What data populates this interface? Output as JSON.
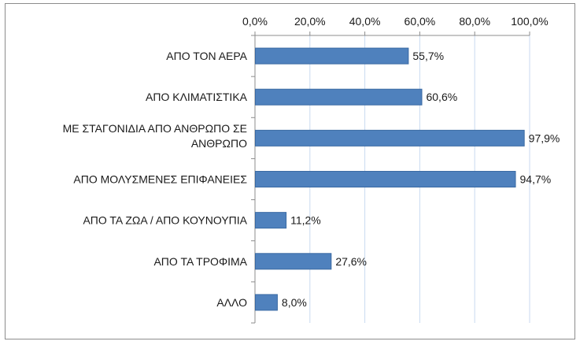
{
  "chart_data": {
    "type": "bar",
    "orientation": "horizontal",
    "categories": [
      "ΑΠΟ ΤΟΝ ΑΕΡΑ",
      "ΑΠΟ ΚΛΙΜΑΤΙΣΤΙΚΑ",
      [
        "ΜΕ ΣΤΑΓΟΝΙΔΙΑ ΑΠΟ ΑΝΘΡΩΠΟ ΣΕ",
        "ΑΝΘΡΩΠΟ"
      ],
      "ΑΠΟ ΜΟΛΥΣΜΕΝΕΣ ΕΠΙΦΑΝΕΙΕΣ",
      "ΑΠΟ ΤΑ ΖΩΑ / ΑΠΟ ΚΟΥΝΟΥΠΙΑ",
      "ΑΠΟ ΤΑ ΤΡΟΦΙΜΑ",
      "ΑΛΛΟ"
    ],
    "values": [
      55.7,
      60.6,
      97.9,
      94.7,
      11.2,
      27.6,
      8.0
    ],
    "value_labels": [
      "55,7%",
      "60,6%",
      "97,9%",
      "94,7%",
      "11,2%",
      "27,6%",
      "8,0%"
    ],
    "xlim": [
      0,
      100
    ],
    "ticks": [
      0,
      20,
      40,
      60,
      80,
      100
    ],
    "tick_labels": [
      "0,0%",
      "20,0%",
      "40,0%",
      "60,0%",
      "80,0%",
      "100,0%"
    ],
    "x_axis_position": "top",
    "grid": true,
    "legend": "none",
    "bar_color": "#4f81bd",
    "bar_border_color": "#3a6aa3",
    "grid_color": "#c9daf0"
  }
}
